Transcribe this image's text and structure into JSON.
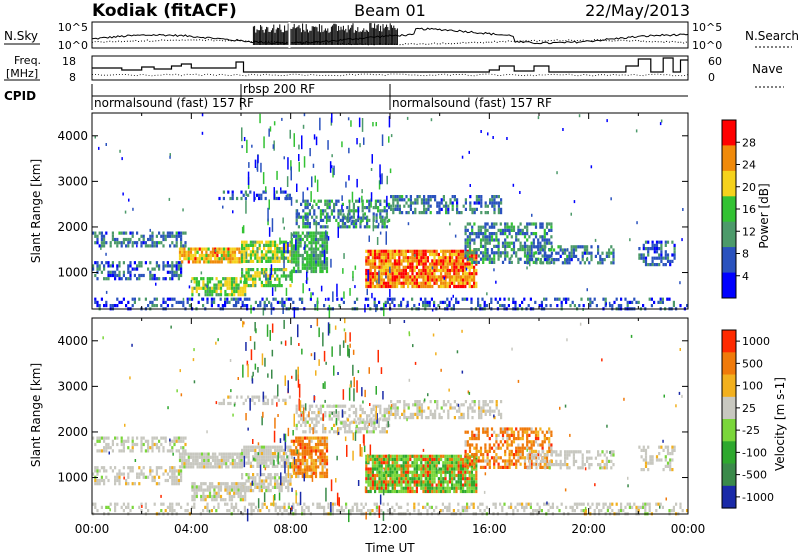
{
  "header": {
    "station": "Kodiak (fitACF)",
    "beam": "Beam 01",
    "date": "22/May/2013"
  },
  "noise_panel": {
    "left_label": "N.Sky",
    "right_label": "N.Search",
    "left_tick_top": "10^5",
    "left_tick_bottom": "10^0",
    "right_tick_top": "10^5",
    "right_tick_bottom": "10^0"
  },
  "freq_panel": {
    "left_label_line1": "Freq.",
    "left_label_line2": "[MHz]",
    "right_label": "Nave",
    "left_tick_top": "18",
    "left_tick_bottom": "8",
    "right_tick_top": "60",
    "right_tick_bottom": "0"
  },
  "cpid": {
    "label": "CPID",
    "segments": [
      {
        "start_hour": 0.0,
        "end_hour": 6.0,
        "text": "normalsound (fast) 157 RF"
      },
      {
        "start_hour": 6.0,
        "end_hour": 12.0,
        "text": "rbsp 200 RF"
      },
      {
        "start_hour": 12.0,
        "end_hour": 24.0,
        "text": "normalsound (fast) 157 RF"
      }
    ]
  },
  "chart_data": [
    {
      "type": "heatmap",
      "name": "power",
      "ylabel": "Slant Range [km]",
      "xlabel": "",
      "x_range": [
        0,
        24
      ],
      "ylim": [
        200,
        4500
      ],
      "yticks": [
        1000,
        2000,
        3000,
        4000
      ],
      "colorbar": {
        "label": "Power [dB]",
        "ticks": [
          "4",
          "8",
          "12",
          "16",
          "20",
          "24",
          "28"
        ],
        "colors": [
          "#0000ff",
          "#2a52be",
          "#4c9a6a",
          "#33c233",
          "#f5d21c",
          "#f08a0a",
          "#ff0000"
        ]
      }
    },
    {
      "type": "heatmap",
      "name": "velocity",
      "ylabel": "Slant Range [km]",
      "xlabel": "Time UT",
      "x_range": [
        0,
        24
      ],
      "ylim": [
        200,
        4500
      ],
      "yticks": [
        1000,
        2000,
        3000,
        4000
      ],
      "xticks": [
        "00:00",
        "04:00",
        "08:00",
        "12:00",
        "16:00",
        "20:00",
        "00:00"
      ],
      "colorbar": {
        "label": "Velocity [m s-1]",
        "ticks": [
          "1000",
          "500",
          "100",
          "25",
          "-25",
          "-100",
          "-500",
          "-1000"
        ],
        "colors": [
          "#1a2aa8",
          "#3a8a4a",
          "#2ea82e",
          "#7ad63a",
          "#c8c8c0",
          "#f2b01e",
          "#f07a0a",
          "#ff2a00"
        ]
      }
    }
  ]
}
